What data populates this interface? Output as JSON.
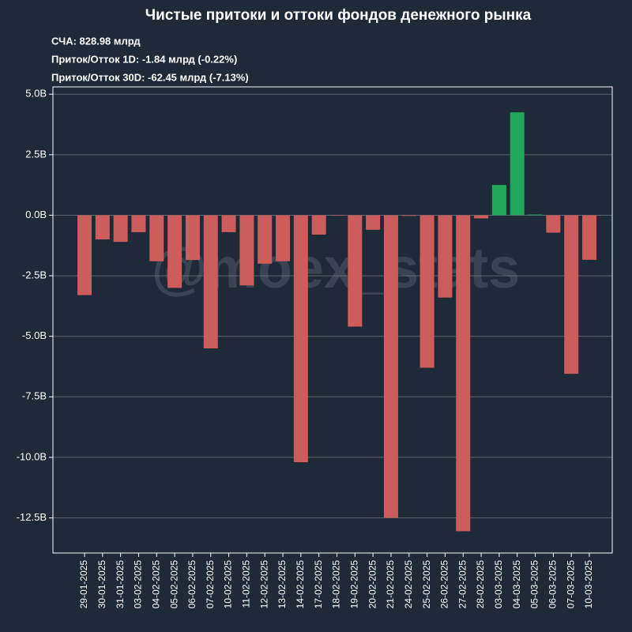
{
  "chart_data": {
    "type": "bar",
    "title": "Чистые притоки и оттоки фондов денежного рынка",
    "subtitle_lines": [
      "СЧА: 828.98 млрд",
      "Приток/Отток 1D: -1.84 млрд (-0.22%)",
      "Приток/Отток 30D: -62.45 млрд (-7.13%)"
    ],
    "watermark": "@moex_stats",
    "categories": [
      "29-01-2025",
      "30-01-2025",
      "31-01-2025",
      "03-02-2025",
      "04-02-2025",
      "05-02-2025",
      "06-02-2025",
      "07-02-2025",
      "10-02-2025",
      "11-02-2025",
      "12-02-2025",
      "13-02-2025",
      "14-02-2025",
      "17-02-2025",
      "18-02-2025",
      "19-02-2025",
      "20-02-2025",
      "21-02-2025",
      "24-02-2025",
      "25-02-2025",
      "26-02-2025",
      "27-02-2025",
      "28-02-2025",
      "03-03-2025",
      "04-03-2025",
      "05-03-2025",
      "06-03-2025",
      "07-03-2025",
      "10-03-2025"
    ],
    "values": [
      -3.3,
      -1.0,
      -1.1,
      -0.7,
      -1.9,
      -3.0,
      -1.85,
      -5.5,
      -0.7,
      -2.9,
      -2.0,
      -1.9,
      -10.2,
      -0.8,
      -0.02,
      -4.6,
      -0.6,
      -12.5,
      -0.03,
      -6.3,
      -3.4,
      -13.05,
      -0.13,
      1.25,
      4.25,
      0.03,
      -0.72,
      -6.55,
      -1.84
    ],
    "color_positive": "#1fa85a",
    "color_negative": "#cd5c5c",
    "ylim": [
      -13.95,
      5.3
    ],
    "yticks": [
      {
        "value": 5,
        "label": "5.0B"
      },
      {
        "value": 2.5,
        "label": "2.5B"
      },
      {
        "value": 0,
        "label": "0.0B"
      },
      {
        "value": -2.5,
        "label": "-2.5B"
      },
      {
        "value": -5,
        "label": "-5.0B"
      },
      {
        "value": -7.5,
        "label": "-7.5B"
      },
      {
        "value": -10,
        "label": "-10.0B"
      },
      {
        "value": -12.5,
        "label": "-12.5B"
      }
    ],
    "grid": true
  }
}
